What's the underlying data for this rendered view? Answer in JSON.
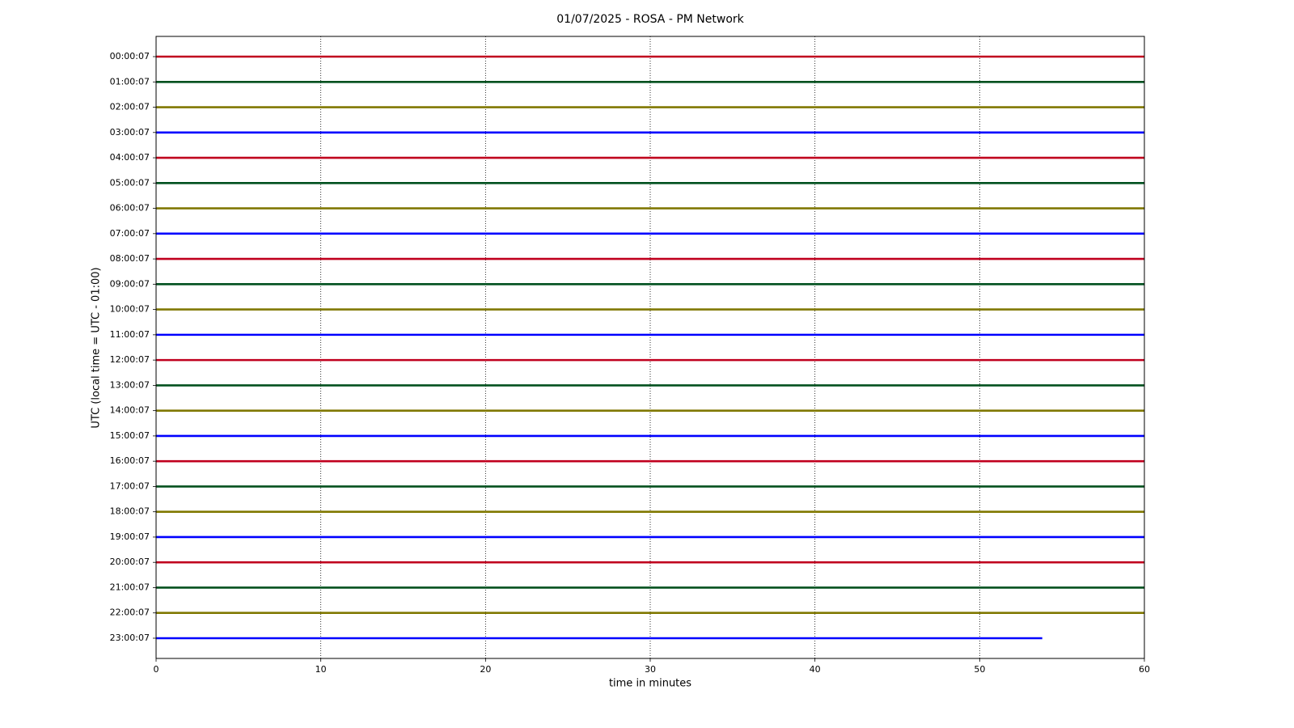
{
  "chart_data": {
    "type": "helicorder",
    "title": "01/07/2025 - ROSA - PM Network",
    "xlabel": "time in minutes",
    "ylabel": "UTC (local time = UTC - 01:00)",
    "xlim": [
      0,
      60
    ],
    "xticks": [
      0,
      10,
      20,
      30,
      40,
      50,
      60
    ],
    "grid": "x",
    "colors": [
      "#c0001e",
      "#00501e",
      "#807800",
      "#0000ff"
    ],
    "categories": [
      "00:00:07",
      "01:00:07",
      "02:00:07",
      "03:00:07",
      "04:00:07",
      "05:00:07",
      "06:00:07",
      "07:00:07",
      "08:00:07",
      "09:00:07",
      "10:00:07",
      "11:00:07",
      "12:00:07",
      "13:00:07",
      "14:00:07",
      "15:00:07",
      "16:00:07",
      "17:00:07",
      "18:00:07",
      "19:00:07",
      "20:00:07",
      "21:00:07",
      "22:00:07",
      "23:00:07"
    ],
    "values": [
      60,
      60,
      60,
      60,
      60,
      60,
      60,
      60,
      60,
      60,
      60,
      60,
      60,
      60,
      60,
      60,
      60,
      60,
      60,
      60,
      60,
      60,
      60,
      53.8
    ]
  }
}
